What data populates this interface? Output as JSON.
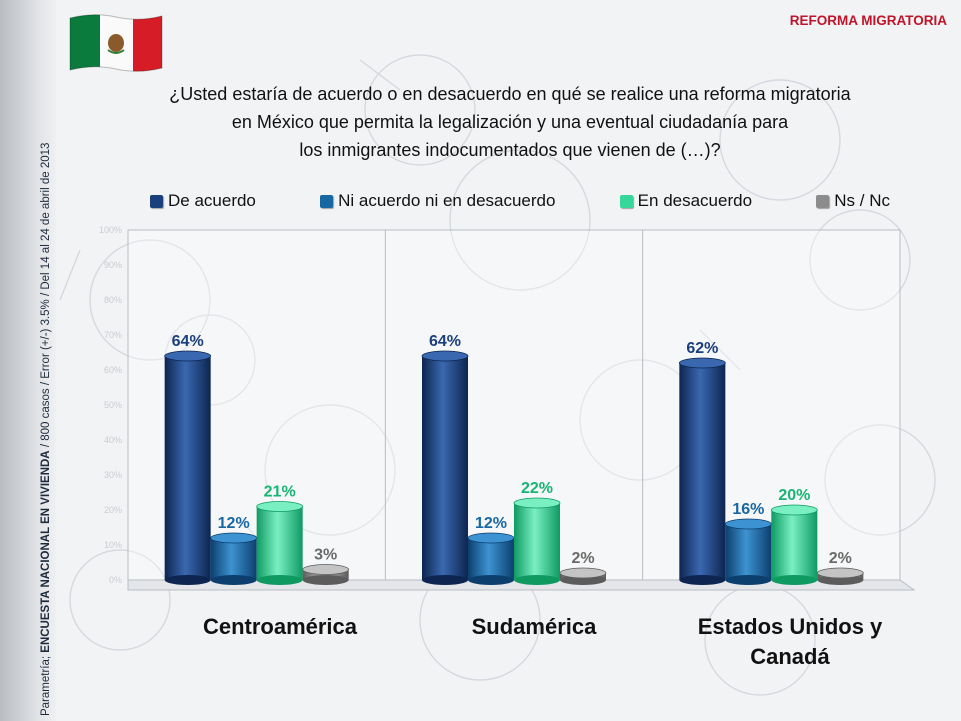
{
  "header": {
    "title": "REFORMA MIGRATORIA"
  },
  "sidebar": {
    "prefix": "Parametría; ",
    "bold": "ENCUESTA NACIONAL EN VIVIENDA",
    "suffix": " / 800 casos / Error (+/-) 3.5% / Del 14 al 24  de abril de 2013"
  },
  "question": {
    "line1": "¿Usted estaría de acuerdo o en desacuerdo en qué se realice una reforma migratoria",
    "line2": "en México que permita la legalización y una eventual ciudadanía para",
    "line3": "los inmigrantes indocumentados que vienen de (…)?"
  },
  "colors": {
    "de_acuerdo": "#1a3f7a",
    "ni_acuerdo": "#1767a3",
    "en_desacuerdo": "#35d89a",
    "ns_nc": "#8c8c8c"
  },
  "chart_data": {
    "type": "bar",
    "categories": [
      "Centroamérica",
      "Sudamérica",
      "Estados Unidos y Canadá"
    ],
    "series": [
      {
        "name": "De acuerdo",
        "values": [
          64,
          64,
          62
        ]
      },
      {
        "name": "Ni acuerdo ni en desacuerdo",
        "values": [
          12,
          12,
          16
        ]
      },
      {
        "name": "En desacuerdo",
        "values": [
          21,
          22,
          20
        ]
      },
      {
        "name": "Ns / Nc",
        "values": [
          3,
          2,
          2
        ]
      }
    ],
    "ylim": [
      0,
      100
    ],
    "unit": "%",
    "legend": "top"
  }
}
